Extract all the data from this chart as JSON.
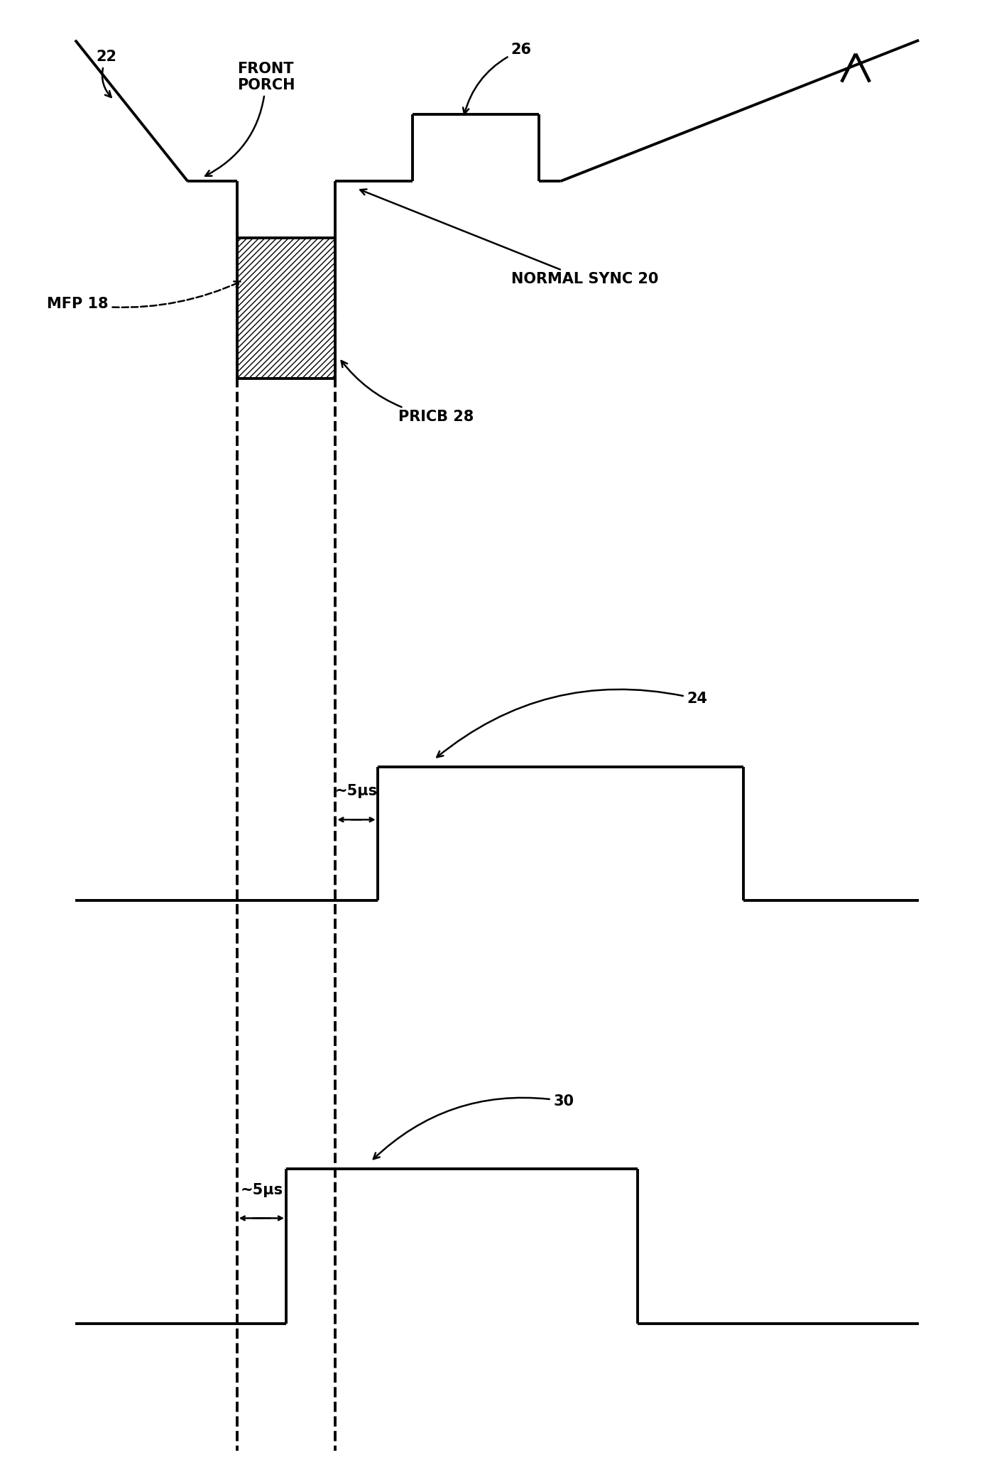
{
  "bg_color": "#ffffff",
  "line_color": "#000000",
  "line_width": 2.8,
  "fig_width": 14.14,
  "fig_height": 20.87,
  "dpi": 100,
  "labels": {
    "22": "22",
    "26": "26",
    "24": "24",
    "30": "30",
    "front_porch": "FRONT\nPORCH",
    "normal_sync": "NORMAL SYNC 20",
    "pricb": "PRICB 28",
    "mfp": "MFP 18",
    "5us_1": "~5μs",
    "5us_2": "~5μs"
  },
  "hatch_pattern": "////",
  "font_size": 13,
  "font_size_large": 15
}
